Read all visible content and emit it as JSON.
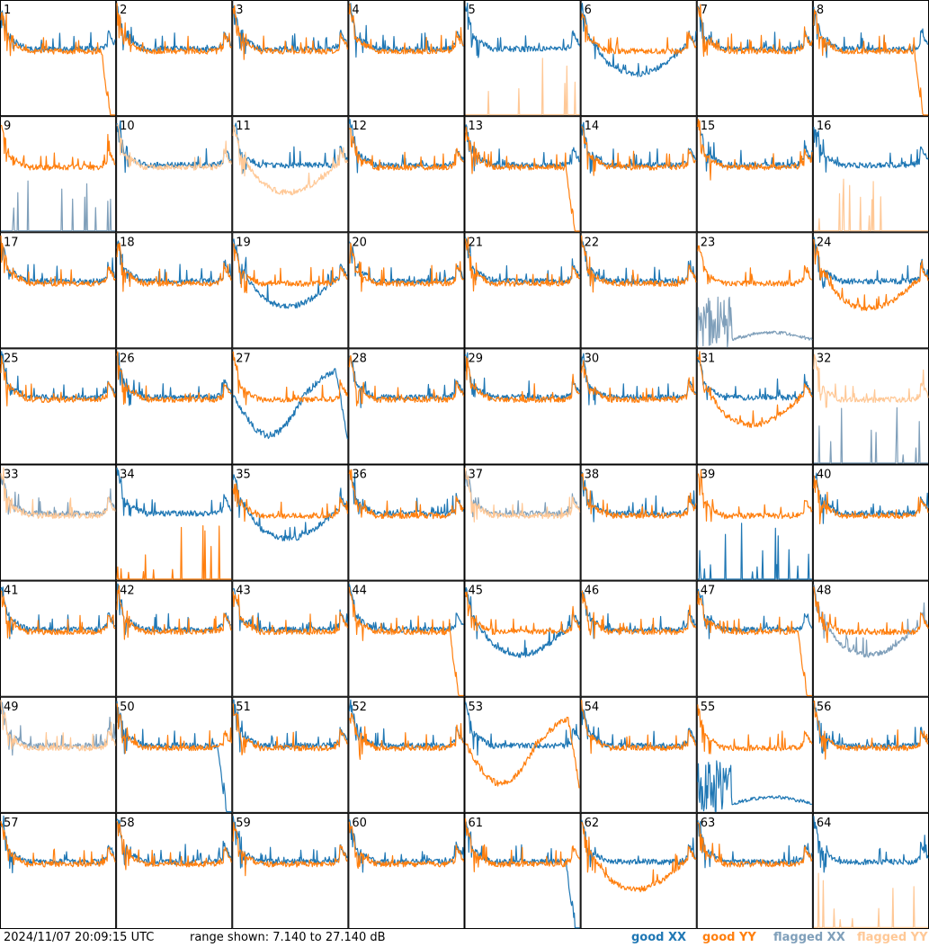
{
  "chart_data": {
    "type": "line",
    "layout": "small-multiples",
    "panel_count": 64,
    "grid": "8x8",
    "panel_labels": [
      "1",
      "2",
      "3",
      "4",
      "5",
      "6",
      "7",
      "8",
      "9",
      "10",
      "11",
      "12",
      "13",
      "14",
      "15",
      "16",
      "17",
      "18",
      "19",
      "20",
      "21",
      "22",
      "23",
      "24",
      "25",
      "26",
      "27",
      "28",
      "29",
      "30",
      "31",
      "32",
      "33",
      "34",
      "35",
      "36",
      "37",
      "38",
      "39",
      "40",
      "41",
      "42",
      "43",
      "44",
      "45",
      "46",
      "47",
      "48",
      "49",
      "50",
      "51",
      "52",
      "53",
      "54",
      "55",
      "56",
      "57",
      "58",
      "59",
      "60",
      "61",
      "62",
      "63",
      "64"
    ],
    "units": "dB",
    "ylim": [
      7.14,
      27.14
    ],
    "xlabel": "",
    "ylabel": "",
    "axes_visible": false,
    "series": [
      {
        "name": "good XX",
        "color": "#1f77b4"
      },
      {
        "name": "good YY",
        "color": "#ff7f0e"
      },
      {
        "name": "flagged XX",
        "color": "#7f9fba"
      },
      {
        "name": "flagged YY",
        "color": "#ffc896"
      }
    ],
    "panels": {
      "1": {
        "xx": "good",
        "yy": "good",
        "yy_pattern": "rolloff"
      },
      "2": {
        "xx": "good",
        "yy": "good"
      },
      "3": {
        "xx": "good",
        "yy": "good"
      },
      "4": {
        "xx": "good",
        "yy": "good"
      },
      "5": {
        "xx": "good",
        "yy": "flagged",
        "yy_pattern": "spikes"
      },
      "6": {
        "xx": "good",
        "yy": "good",
        "xx_pattern": "dip"
      },
      "7": {
        "xx": "good",
        "yy": "good"
      },
      "8": {
        "xx": "good",
        "yy": "good",
        "yy_pattern": "rolloff"
      },
      "9": {
        "xx": "flagged",
        "yy": "good",
        "xx_pattern": "spikes"
      },
      "10": {
        "xx": "good",
        "yy": "flagged"
      },
      "11": {
        "xx": "good",
        "yy": "flagged",
        "yy_pattern": "dip"
      },
      "12": {
        "xx": "good",
        "yy": "good"
      },
      "13": {
        "xx": "good",
        "yy": "good",
        "yy_pattern": "rolloff"
      },
      "14": {
        "xx": "good",
        "yy": "good"
      },
      "15": {
        "xx": "good",
        "yy": "good"
      },
      "16": {
        "xx": "good",
        "yy": "flagged",
        "yy_pattern": "spikes"
      },
      "17": {
        "xx": "good",
        "yy": "good"
      },
      "18": {
        "xx": "good",
        "yy": "good"
      },
      "19": {
        "xx": "good",
        "yy": "good",
        "xx_pattern": "dip"
      },
      "20": {
        "xx": "good",
        "yy": "good"
      },
      "21": {
        "xx": "good",
        "yy": "good"
      },
      "22": {
        "xx": "good",
        "yy": "good"
      },
      "23": {
        "xx": "flagged",
        "yy": "good",
        "xx_pattern": "low"
      },
      "24": {
        "xx": "good",
        "yy": "good",
        "yy_pattern": "dip"
      },
      "25": {
        "xx": "good",
        "yy": "good"
      },
      "26": {
        "xx": "good",
        "yy": "good"
      },
      "27": {
        "xx": "good",
        "yy": "good",
        "xx_pattern": "wave"
      },
      "28": {
        "xx": "good",
        "yy": "good"
      },
      "29": {
        "xx": "good",
        "yy": "good"
      },
      "30": {
        "xx": "good",
        "yy": "good"
      },
      "31": {
        "xx": "good",
        "yy": "good",
        "yy_pattern": "dip"
      },
      "32": {
        "xx": "flagged",
        "yy": "flagged",
        "xx_pattern": "spikes"
      },
      "33": {
        "xx": "flagged",
        "yy": "flagged"
      },
      "34": {
        "xx": "good",
        "yy": "good",
        "yy_pattern": "spikes"
      },
      "35": {
        "xx": "good",
        "yy": "good",
        "xx_pattern": "dip"
      },
      "36": {
        "xx": "good",
        "yy": "good"
      },
      "37": {
        "xx": "flagged",
        "yy": "flagged"
      },
      "38": {
        "xx": "good",
        "yy": "good"
      },
      "39": {
        "xx": "good",
        "yy": "good",
        "xx_pattern": "spikes"
      },
      "40": {
        "xx": "good",
        "yy": "good"
      },
      "41": {
        "xx": "good",
        "yy": "good"
      },
      "42": {
        "xx": "good",
        "yy": "good"
      },
      "43": {
        "xx": "good",
        "yy": "good"
      },
      "44": {
        "xx": "good",
        "yy": "good",
        "yy_pattern": "rolloff"
      },
      "45": {
        "xx": "good",
        "yy": "good",
        "xx_pattern": "dip"
      },
      "46": {
        "xx": "good",
        "yy": "good"
      },
      "47": {
        "xx": "good",
        "yy": "good",
        "yy_pattern": "rolloff"
      },
      "48": {
        "xx": "flagged",
        "yy": "good",
        "xx_pattern": "dip"
      },
      "49": {
        "xx": "flagged",
        "yy": "flagged"
      },
      "50": {
        "xx": "good",
        "yy": "good",
        "xx_pattern": "rolloff"
      },
      "51": {
        "xx": "good",
        "yy": "good"
      },
      "52": {
        "xx": "good",
        "yy": "good"
      },
      "53": {
        "xx": "good",
        "yy": "good",
        "yy_pattern": "wave"
      },
      "54": {
        "xx": "good",
        "yy": "good"
      },
      "55": {
        "xx": "good",
        "yy": "good",
        "xx_pattern": "low"
      },
      "56": {
        "xx": "good",
        "yy": "good"
      },
      "57": {
        "xx": "good",
        "yy": "good"
      },
      "58": {
        "xx": "good",
        "yy": "good"
      },
      "59": {
        "xx": "good",
        "yy": "good"
      },
      "60": {
        "xx": "good",
        "yy": "good"
      },
      "61": {
        "xx": "good",
        "yy": "good",
        "xx_pattern": "rolloff"
      },
      "62": {
        "xx": "good",
        "yy": "good",
        "yy_pattern": "dip"
      },
      "63": {
        "xx": "good",
        "yy": "good"
      },
      "64": {
        "xx": "good",
        "yy": "flagged",
        "yy_pattern": "spikes"
      }
    }
  },
  "footer": {
    "timestamp": "2024/11/07 20:09:15 UTC",
    "range_text": "range shown: 7.140 to 27.140 dB",
    "legend": [
      {
        "label": "good XX",
        "color": "#1f77b4"
      },
      {
        "label": "good YY",
        "color": "#ff7f0e"
      },
      {
        "label": "flagged XX",
        "color": "#7f9fba"
      },
      {
        "label": "flagged YY",
        "color": "#ffc896"
      }
    ]
  }
}
